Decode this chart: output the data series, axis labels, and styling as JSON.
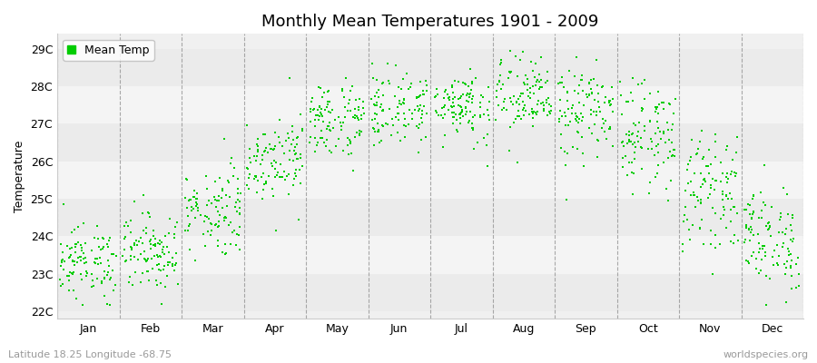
{
  "title": "Monthly Mean Temperatures 1901 - 2009",
  "ylabel": "Temperature",
  "xlabel": "",
  "ytick_labels": [
    "22C",
    "23C",
    "24C",
    "25C",
    "26C",
    "27C",
    "28C",
    "29C"
  ],
  "ytick_values": [
    22,
    23,
    24,
    25,
    26,
    27,
    28,
    29
  ],
  "ylim": [
    21.8,
    29.4
  ],
  "xlim": [
    0,
    12
  ],
  "months": [
    "Jan",
    "Feb",
    "Mar",
    "Apr",
    "May",
    "Jun",
    "Jul",
    "Aug",
    "Sep",
    "Oct",
    "Nov",
    "Dec"
  ],
  "month_tick_positions": [
    0.5,
    1.5,
    2.5,
    3.5,
    4.5,
    5.5,
    6.5,
    7.5,
    8.5,
    9.5,
    10.5,
    11.5
  ],
  "vline_positions": [
    0,
    1,
    2,
    3,
    4,
    5,
    6,
    7,
    8,
    9,
    10,
    11,
    12
  ],
  "mean_temps": [
    23.3,
    23.6,
    24.7,
    26.1,
    27.1,
    27.4,
    27.5,
    27.7,
    27.3,
    26.7,
    25.2,
    23.9
  ],
  "std_temps": [
    0.48,
    0.52,
    0.6,
    0.55,
    0.52,
    0.5,
    0.48,
    0.55,
    0.62,
    0.68,
    0.72,
    0.7
  ],
  "n_years": 109,
  "dot_color": "#00cc00",
  "dot_size": 3,
  "bg_color_plot": "#f0f0f0",
  "band_colors": [
    "#ebebeb",
    "#f4f4f4"
  ],
  "grid_color": "#888888",
  "legend_label": "Mean Temp",
  "subtitle_left": "Latitude 18.25 Longitude -68.75",
  "subtitle_right": "worldspecies.org",
  "title_fontsize": 13,
  "label_fontsize": 9,
  "tick_fontsize": 9,
  "subtitle_fontsize": 8
}
